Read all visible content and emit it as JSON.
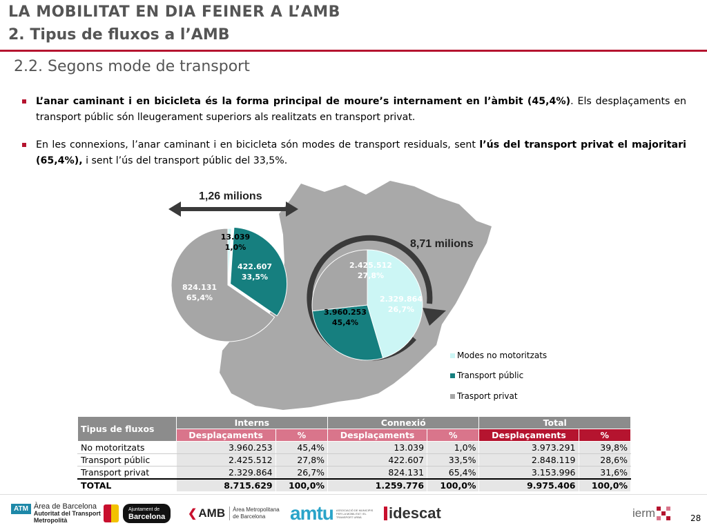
{
  "header": {
    "title_line1": "LA MOBILITAT EN DIA FEINER A L’AMB",
    "title_line2": "2. Tipus de fluxos a l’AMB",
    "subtitle": "2.2. Segons mode de transport"
  },
  "bullets": [
    {
      "bold1": "L’anar caminant i en bicicleta és la forma principal de moure’s internament en l’àmbit (45,4%)",
      "rest": ". Els desplaçaments en transport públic són lleugerament superiors als realitzats en transport privat."
    },
    {
      "pre": "En les connexions, l’anar caminant i en bicicleta són modes de transport residuals, sent ",
      "bold": "l’ús del transport privat el majoritari (65,4%),",
      "post": " i sent l’ús del transport públic del 33,5%."
    }
  ],
  "callouts": {
    "connexio": "1,26 milions",
    "interns": "8,71 milions"
  },
  "colors": {
    "accent": "#b5142f",
    "no_motor": "#ccf6f5",
    "public": "#167f7f",
    "privat": "#a6a6a6",
    "map": "#a9a9a9"
  },
  "chart_data": [
    {
      "type": "pie",
      "name": "Connexió",
      "categories": [
        "Modes no motoritzats",
        "Transport públic",
        "Trasport privat"
      ],
      "values": [
        13039,
        422607,
        824131
      ],
      "labels": [
        {
          "value": "13.039",
          "pct": "1,0%"
        },
        {
          "value": "422.607",
          "pct": "33,5%"
        },
        {
          "value": "824.131",
          "pct": "65,4%"
        }
      ]
    },
    {
      "type": "pie",
      "name": "Interns",
      "categories": [
        "Modes no motoritzats",
        "Transport públic",
        "Trasport privat"
      ],
      "values": [
        3960253,
        2425512,
        2329864
      ],
      "labels": [
        {
          "value": "3.960.253",
          "pct": "45,4%"
        },
        {
          "value": "2.425.512",
          "pct": "27,8%"
        },
        {
          "value": "2.329.864",
          "pct": "26,7%"
        }
      ]
    }
  ],
  "legend": [
    "Modes no motoritzats",
    "Transport públic",
    "Trasport privat"
  ],
  "table": {
    "corner": "Tipus de fluxos",
    "groups": [
      "Interns",
      "Connexió",
      "Total"
    ],
    "subheaders": [
      "Desplaçaments",
      "%"
    ],
    "rows": [
      {
        "label": "No motoritzats",
        "cells": [
          "3.960.253",
          "45,4%",
          "13.039",
          "1,0%",
          "3.973.291",
          "39,8%"
        ]
      },
      {
        "label": "Transport públic",
        "cells": [
          "2.425.512",
          "27,8%",
          "422.607",
          "33,5%",
          "2.848.119",
          "28,6%"
        ]
      },
      {
        "label": "Transport privat",
        "cells": [
          "2.329.864",
          "26,7%",
          "824.131",
          "65,4%",
          "3.153.996",
          "31,6%"
        ]
      }
    ],
    "total": {
      "label": "TOTAL",
      "cells": [
        "8.715.629",
        "100,0%",
        "1.259.776",
        "100,0%",
        "9.975.406",
        "100,0%"
      ]
    }
  },
  "footer": {
    "atm_badge": "ATM",
    "atm_text1": "Àrea de Barcelona",
    "atm_text2": "Autoritat del Transport",
    "atm_text3": "Metropolità",
    "bcn_small": "Ajuntament de",
    "bcn_big": "Barcelona",
    "amb": "AMB",
    "amb_text1": "Àrea Metropolitana",
    "amb_text2": "de Barcelona",
    "amtu": "amtu",
    "amtu_text": "ASSOCIACIÓ DE MUNICIPIS PER LA MOBILITAT I EL TRANSPORT URBÀ",
    "idescat": "idescat",
    "ierm": "ierm",
    "page": "28"
  }
}
